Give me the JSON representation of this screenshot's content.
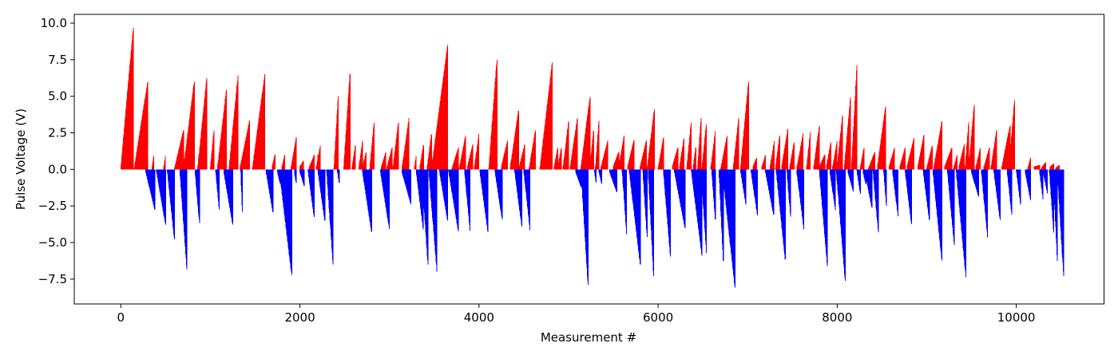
{
  "chart_data": {
    "type": "bar",
    "title": "",
    "xlabel": "Measurement #",
    "ylabel": "Pulse Voltage (V)",
    "xlim": [
      -520,
      10980
    ],
    "ylim": [
      -9.2,
      10.6
    ],
    "x_ticks": [
      0,
      2000,
      4000,
      6000,
      8000,
      10000
    ],
    "y_ticks": [
      -7.5,
      -5.0,
      -2.5,
      0.0,
      2.5,
      5.0,
      7.5,
      10.0
    ],
    "y_tick_labels": [
      "−7.5",
      "−5.0",
      "−2.5",
      "0.0",
      "2.5",
      "5.0",
      "7.5",
      "10.0"
    ],
    "grid": false,
    "legend": "none",
    "colors": {
      "positive": "#ff0000",
      "negative": "#0000ff"
    },
    "n_measurements": 10530,
    "series": [
      {
        "polarity": "positive",
        "ramps": [
          [
            0,
            140,
            0.1,
            9.8
          ],
          [
            150,
            300,
            0.1,
            6.0
          ],
          [
            350,
            370,
            0.2,
            1.0
          ],
          [
            480,
            500,
            0.2,
            1.0
          ],
          [
            600,
            700,
            0.1,
            2.7
          ],
          [
            700,
            820,
            0.1,
            6.0
          ],
          [
            860,
            960,
            0.2,
            6.3
          ],
          [
            1000,
            1040,
            0.2,
            2.7
          ],
          [
            1080,
            1180,
            0.2,
            5.5
          ],
          [
            1210,
            1310,
            0.2,
            6.5
          ],
          [
            1330,
            1440,
            0.1,
            3.4
          ],
          [
            1470,
            1610,
            0.1,
            6.6
          ],
          [
            1690,
            1720,
            0.2,
            1.0
          ],
          [
            1800,
            1830,
            0.2,
            1.0
          ],
          [
            1900,
            1960,
            0.1,
            2.2
          ],
          [
            2000,
            2040,
            0.2,
            0.6
          ],
          [
            2100,
            2160,
            0.1,
            1.0
          ],
          [
            2200,
            2200,
            1.0,
            1.0
          ],
          [
            2180,
            2230,
            0.1,
            1.7
          ],
          [
            2380,
            2430,
            0.1,
            5.2
          ],
          [
            2490,
            2560,
            0.2,
            6.6
          ],
          [
            2580,
            2620,
            0.1,
            1.7
          ],
          [
            2660,
            2700,
            0.2,
            2.0
          ],
          [
            2700,
            2740,
            0.2,
            1.2
          ],
          [
            2780,
            2830,
            0.1,
            3.3
          ],
          [
            2910,
            2960,
            0.2,
            1.2
          ],
          [
            2970,
            3030,
            0.1,
            1.5
          ],
          [
            3040,
            3100,
            0.2,
            3.2
          ],
          [
            3140,
            3220,
            0.1,
            3.6
          ],
          [
            3280,
            3300,
            0.2,
            1.0
          ],
          [
            3340,
            3380,
            0.2,
            1.7
          ],
          [
            3420,
            3470,
            0.1,
            2.5
          ],
          [
            3470,
            3650,
            0.1,
            8.5
          ],
          [
            3700,
            3770,
            0.1,
            1.5
          ],
          [
            3780,
            3850,
            0.1,
            2.3
          ],
          [
            3870,
            3930,
            0.2,
            1.7
          ],
          [
            3950,
            4000,
            0.2,
            2.5
          ],
          [
            4110,
            4200,
            0.1,
            7.5
          ],
          [
            4250,
            4320,
            0.2,
            2.0
          ],
          [
            4350,
            4440,
            0.2,
            4.0
          ],
          [
            4450,
            4510,
            0.2,
            1.7
          ],
          [
            4560,
            4630,
            0.1,
            2.7
          ],
          [
            4680,
            4820,
            0.1,
            7.4
          ],
          [
            4840,
            4880,
            0.2,
            1.5
          ],
          [
            4880,
            4920,
            0.2,
            1.5
          ],
          [
            4940,
            5000,
            0.2,
            3.3
          ],
          [
            5020,
            5100,
            0.2,
            3.6
          ],
          [
            5140,
            5240,
            0.2,
            5.0
          ],
          [
            5240,
            5280,
            0.2,
            2.7
          ],
          [
            5300,
            5340,
            0.2,
            3.4
          ],
          [
            5360,
            5440,
            0.1,
            2.0
          ],
          [
            5500,
            5560,
            0.2,
            1.2
          ],
          [
            5560,
            5620,
            0.2,
            2.3
          ],
          [
            5660,
            5730,
            0.2,
            2.0
          ],
          [
            5800,
            5870,
            0.2,
            2.0
          ],
          [
            5880,
            5960,
            0.2,
            4.2
          ],
          [
            6000,
            6060,
            0.1,
            2.2
          ],
          [
            6160,
            6220,
            0.2,
            1.5
          ],
          [
            6240,
            6290,
            0.2,
            2.2
          ],
          [
            6320,
            6370,
            0.1,
            3.3
          ],
          [
            6390,
            6420,
            0.1,
            1.5
          ],
          [
            6440,
            6480,
            0.1,
            3.6
          ],
          [
            6490,
            6540,
            0.1,
            3.2
          ],
          [
            6590,
            6640,
            0.2,
            2.7
          ],
          [
            6700,
            6770,
            0.1,
            2.3
          ],
          [
            6840,
            6900,
            0.2,
            3.5
          ],
          [
            6920,
            7010,
            0.1,
            6.0
          ],
          [
            7060,
            7100,
            0.2,
            0.8
          ],
          [
            7160,
            7200,
            0.2,
            1.0
          ],
          [
            7250,
            7300,
            0.2,
            2.0
          ],
          [
            7310,
            7360,
            0.1,
            2.4
          ],
          [
            7380,
            7450,
            0.2,
            2.8
          ],
          [
            7470,
            7520,
            0.2,
            1.9
          ],
          [
            7550,
            7620,
            0.1,
            2.5
          ],
          [
            7660,
            7700,
            0.2,
            2.6
          ],
          [
            7740,
            7800,
            0.2,
            3.0
          ],
          [
            7800,
            7860,
            0.2,
            1.0
          ],
          [
            7880,
            7930,
            0.2,
            1.9
          ],
          [
            7950,
            8000,
            0.2,
            2.0
          ],
          [
            8000,
            8060,
            0.2,
            3.7
          ],
          [
            8080,
            8150,
            0.2,
            5.0
          ],
          [
            8160,
            8220,
            0.2,
            7.1
          ],
          [
            8260,
            8300,
            0.2,
            1.5
          ],
          [
            8350,
            8420,
            0.1,
            1.2
          ],
          [
            8450,
            8540,
            0.2,
            4.3
          ],
          [
            8580,
            8640,
            0.2,
            1.5
          ],
          [
            8700,
            8760,
            0.2,
            1.5
          ],
          [
            8780,
            8860,
            0.2,
            2.2
          ],
          [
            8900,
            8970,
            0.2,
            2.4
          ],
          [
            9000,
            9060,
            0.1,
            1.6
          ],
          [
            9080,
            9170,
            0.2,
            3.3
          ],
          [
            9200,
            9280,
            0.2,
            1.5
          ],
          [
            9300,
            9340,
            0.1,
            1.0
          ],
          [
            9360,
            9420,
            0.2,
            1.7
          ],
          [
            9430,
            9470,
            0.2,
            3.3
          ],
          [
            9470,
            9530,
            0.2,
            4.4
          ],
          [
            9550,
            9600,
            0.2,
            1.5
          ],
          [
            9640,
            9700,
            0.2,
            1.5
          ],
          [
            9720,
            9780,
            0.2,
            2.7
          ],
          [
            9840,
            9930,
            0.2,
            3.0
          ],
          [
            9920,
            9980,
            0.2,
            4.7
          ],
          [
            10130,
            10160,
            0.1,
            0.8
          ],
          [
            10200,
            10260,
            0.2,
            0.3
          ],
          [
            10280,
            10330,
            0.1,
            0.5
          ],
          [
            10380,
            10420,
            0.2,
            0.4
          ],
          [
            10440,
            10480,
            0.1,
            0.3
          ]
        ]
      },
      {
        "polarity": "negative",
        "ramps": [
          [
            280,
            380,
            0.2,
            2.8
          ],
          [
            400,
            500,
            0.2,
            3.8
          ],
          [
            520,
            600,
            0.2,
            4.9
          ],
          [
            660,
            740,
            0.2,
            7.0
          ],
          [
            830,
            880,
            0.2,
            3.8
          ],
          [
            1060,
            1100,
            0.2,
            2.8
          ],
          [
            1150,
            1250,
            0.2,
            3.8
          ],
          [
            1340,
            1360,
            0.2,
            3.2
          ],
          [
            1620,
            1700,
            0.1,
            3.0
          ],
          [
            1750,
            1780,
            0.2,
            1.0
          ],
          [
            1770,
            1910,
            0.1,
            7.3
          ],
          [
            1940,
            1960,
            0.3,
            1.0
          ],
          [
            2000,
            2050,
            0.2,
            1.2
          ],
          [
            2090,
            2160,
            0.1,
            3.3
          ],
          [
            2200,
            2280,
            0.1,
            3.6
          ],
          [
            2300,
            2370,
            0.2,
            6.6
          ],
          [
            2420,
            2440,
            0.2,
            1.0
          ],
          [
            2700,
            2800,
            0.2,
            4.3
          ],
          [
            2900,
            3000,
            0.2,
            4.1
          ],
          [
            3140,
            3240,
            0.2,
            2.4
          ],
          [
            3300,
            3380,
            0.2,
            4.2
          ],
          [
            3360,
            3430,
            0.2,
            6.6
          ],
          [
            3440,
            3530,
            0.1,
            7.0
          ],
          [
            3560,
            3650,
            0.2,
            3.5
          ],
          [
            3660,
            3770,
            0.1,
            4.3
          ],
          [
            3840,
            3900,
            0.2,
            4.2
          ],
          [
            4010,
            4100,
            0.2,
            4.3
          ],
          [
            4180,
            4260,
            0.2,
            3.5
          ],
          [
            4400,
            4480,
            0.2,
            4.0
          ],
          [
            4500,
            4570,
            0.1,
            4.2
          ],
          [
            5080,
            5140,
            0.2,
            1.2
          ],
          [
            5140,
            5220,
            0.2,
            8.1
          ],
          [
            5290,
            5310,
            0.2,
            1.0
          ],
          [
            5340,
            5370,
            0.2,
            1.0
          ],
          [
            5460,
            5540,
            0.2,
            1.6
          ],
          [
            5600,
            5650,
            0.2,
            4.6
          ],
          [
            5680,
            5800,
            0.2,
            6.5
          ],
          [
            5830,
            5880,
            0.2,
            4.8
          ],
          [
            5890,
            5950,
            0.3,
            7.3
          ],
          [
            6060,
            6140,
            0.2,
            6.1
          ],
          [
            6180,
            6300,
            0.1,
            4.0
          ],
          [
            6370,
            6490,
            0.1,
            5.9
          ],
          [
            6480,
            6540,
            0.2,
            5.7
          ],
          [
            6600,
            6640,
            0.2,
            3.5
          ],
          [
            6680,
            6730,
            0.2,
            6.5
          ],
          [
            6720,
            6860,
            0.2,
            8.2
          ],
          [
            6920,
            6980,
            0.1,
            2.4
          ],
          [
            7040,
            7110,
            0.2,
            3.2
          ],
          [
            7200,
            7290,
            0.2,
            3.1
          ],
          [
            7320,
            7420,
            0.2,
            6.2
          ],
          [
            7440,
            7480,
            0.2,
            3.3
          ],
          [
            7550,
            7630,
            0.2,
            4.2
          ],
          [
            7800,
            7890,
            0.1,
            6.6
          ],
          [
            7920,
            7980,
            0.2,
            2.8
          ],
          [
            7990,
            8090,
            0.1,
            7.7
          ],
          [
            8120,
            8180,
            0.2,
            1.5
          ],
          [
            8220,
            8260,
            0.1,
            1.7
          ],
          [
            8290,
            8320,
            0.2,
            1.0
          ],
          [
            8310,
            8390,
            0.2,
            2.7
          ],
          [
            8400,
            8460,
            0.1,
            4.3
          ],
          [
            8520,
            8550,
            0.2,
            2.5
          ],
          [
            8620,
            8680,
            0.2,
            3.2
          ],
          [
            8760,
            8830,
            0.2,
            3.8
          ],
          [
            8960,
            9030,
            0.1,
            3.5
          ],
          [
            9070,
            9170,
            0.2,
            6.3
          ],
          [
            9230,
            9310,
            0.1,
            5.3
          ],
          [
            9330,
            9440,
            0.2,
            7.5
          ],
          [
            9500,
            9580,
            0.2,
            1.9
          ],
          [
            9610,
            9680,
            0.1,
            4.7
          ],
          [
            9750,
            9820,
            0.2,
            3.5
          ],
          [
            9900,
            9950,
            0.2,
            3.2
          ],
          [
            10000,
            10050,
            0.1,
            2.5
          ],
          [
            10100,
            10160,
            0.2,
            2.1
          ],
          [
            10260,
            10300,
            0.2,
            2.1
          ],
          [
            10300,
            10350,
            0.2,
            1.7
          ],
          [
            10370,
            10420,
            0.2,
            4.5
          ],
          [
            10410,
            10460,
            0.1,
            6.5
          ],
          [
            10460,
            10530,
            0.2,
            7.4
          ]
        ]
      }
    ]
  }
}
